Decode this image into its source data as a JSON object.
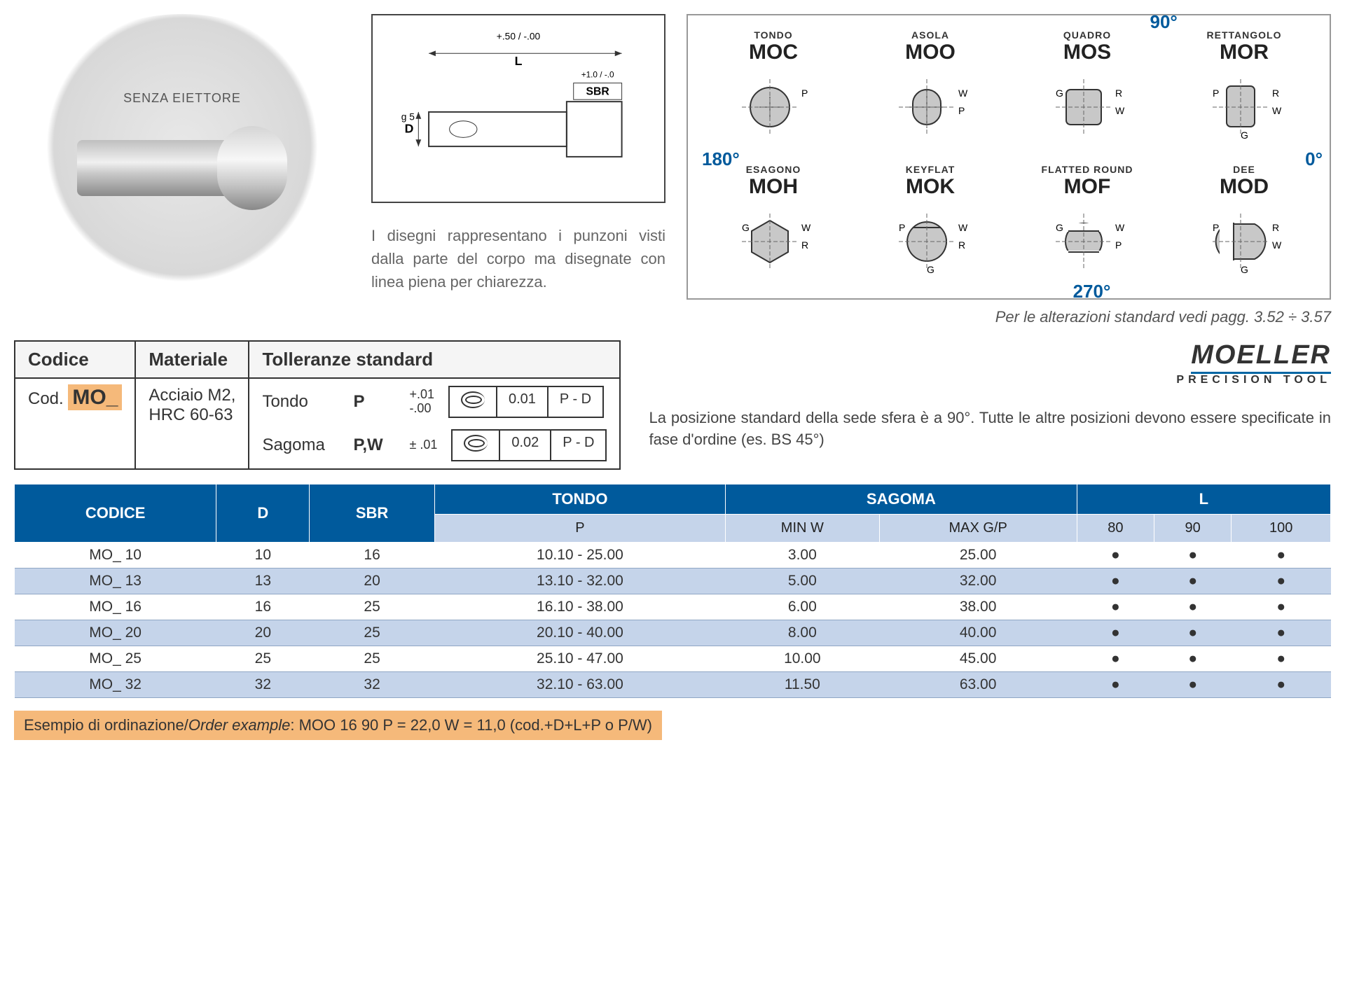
{
  "product": {
    "label": "SENZA EIETTORE"
  },
  "drawing": {
    "L_tol": "+ .50\n-  .00",
    "L_label": "L",
    "SBR_tol": "+ 1.0\n-  .0",
    "SBR_label": "SBR",
    "D_label": "D",
    "fit": "g 5"
  },
  "description": "I disegni rappresentano i punzoni visti dalla parte del corpo ma disegnate con linea piena per chiarezza.",
  "angles": {
    "a90": "90°",
    "a180": "180°",
    "a0": "0°",
    "a270": "270°"
  },
  "shapes": [
    {
      "sub": "TONDO",
      "code": "MOC",
      "dims": [
        "P"
      ]
    },
    {
      "sub": "ASOLA",
      "code": "MOO",
      "dims": [
        "W",
        "P"
      ]
    },
    {
      "sub": "QUADRO",
      "code": "MOS",
      "dims": [
        "R",
        "W",
        "G"
      ]
    },
    {
      "sub": "RETTANGOLO",
      "code": "MOR",
      "dims": [
        "R",
        "W",
        "P",
        "G"
      ]
    },
    {
      "sub": "ESAGONO",
      "code": "MOH",
      "dims": [
        "W",
        "R",
        "G"
      ]
    },
    {
      "sub": "KEYFLAT",
      "code": "MOK",
      "dims": [
        "W",
        "R",
        "P",
        "G"
      ]
    },
    {
      "sub": "FLATTED ROUND",
      "code": "MOF",
      "dims": [
        "W",
        "P",
        "G"
      ]
    },
    {
      "sub": "DEE",
      "code": "MOD",
      "dims": [
        "R",
        "W",
        "P",
        "G"
      ]
    }
  ],
  "alterations_note": "Per le alterazioni standard vedi pagg. 3.52 ÷ 3.57",
  "spec": {
    "headers": {
      "code": "Codice",
      "material": "Materiale",
      "tol": "Tolleranze standard"
    },
    "code_prefix": "Cod.",
    "code_value": "MO_",
    "material": "Acciaio M2,\nHRC 60-63",
    "tol_rows": [
      {
        "label": "Tondo",
        "sym": "P",
        "val": "+.01\n-.00",
        "conc": "0.01",
        "ref": "P - D"
      },
      {
        "label": "Sagoma",
        "sym": "P,W",
        "val": "± .01",
        "conc": "0.02",
        "ref": "P - D"
      }
    ]
  },
  "brand": {
    "name": "MOELLER",
    "sub": "PRECISION TOOL"
  },
  "position_note": "La posizione standard della sede sfera è a 90°. Tutte le altre posizioni devono essere specificate in fase d'ordine (es. BS 45°)",
  "main_table": {
    "headers": {
      "code": "CODICE",
      "D": "D",
      "SBR": "SBR",
      "tondo": "TONDO",
      "sagoma": "SAGOMA",
      "L": "L"
    },
    "sub": {
      "P": "P",
      "minw": "MIN W",
      "maxgp": "MAX G/P",
      "L80": "80",
      "L90": "90",
      "L100": "100"
    },
    "rows": [
      {
        "code": "MO_ 10",
        "D": "10",
        "SBR": "16",
        "P": "10.10 - 25.00",
        "minw": "3.00",
        "maxgp": "25.00",
        "L80": "●",
        "L90": "●",
        "L100": "●"
      },
      {
        "code": "MO_ 13",
        "D": "13",
        "SBR": "20",
        "P": "13.10 - 32.00",
        "minw": "5.00",
        "maxgp": "32.00",
        "L80": "●",
        "L90": "●",
        "L100": "●"
      },
      {
        "code": "MO_ 16",
        "D": "16",
        "SBR": "25",
        "P": "16.10 - 38.00",
        "minw": "6.00",
        "maxgp": "38.00",
        "L80": "●",
        "L90": "●",
        "L100": "●"
      },
      {
        "code": "MO_ 20",
        "D": "20",
        "SBR": "25",
        "P": "20.10 - 40.00",
        "minw": "8.00",
        "maxgp": "40.00",
        "L80": "●",
        "L90": "●",
        "L100": "●"
      },
      {
        "code": "MO_ 25",
        "D": "25",
        "SBR": "25",
        "P": "25.10 - 47.00",
        "minw": "10.00",
        "maxgp": "45.00",
        "L80": "●",
        "L90": "●",
        "L100": "●"
      },
      {
        "code": "MO_ 32",
        "D": "32",
        "SBR": "32",
        "P": "32.10 - 63.00",
        "minw": "11.50",
        "maxgp": "63.00",
        "L80": "●",
        "L90": "●",
        "L100": "●"
      }
    ]
  },
  "order_example": {
    "label_it": "Esempio di ordinazione",
    "label_en": "Order example",
    "text": ": MOO 16 90 P = 22,0  W = 11,0 (cod.+D+L+P o P/W)"
  }
}
